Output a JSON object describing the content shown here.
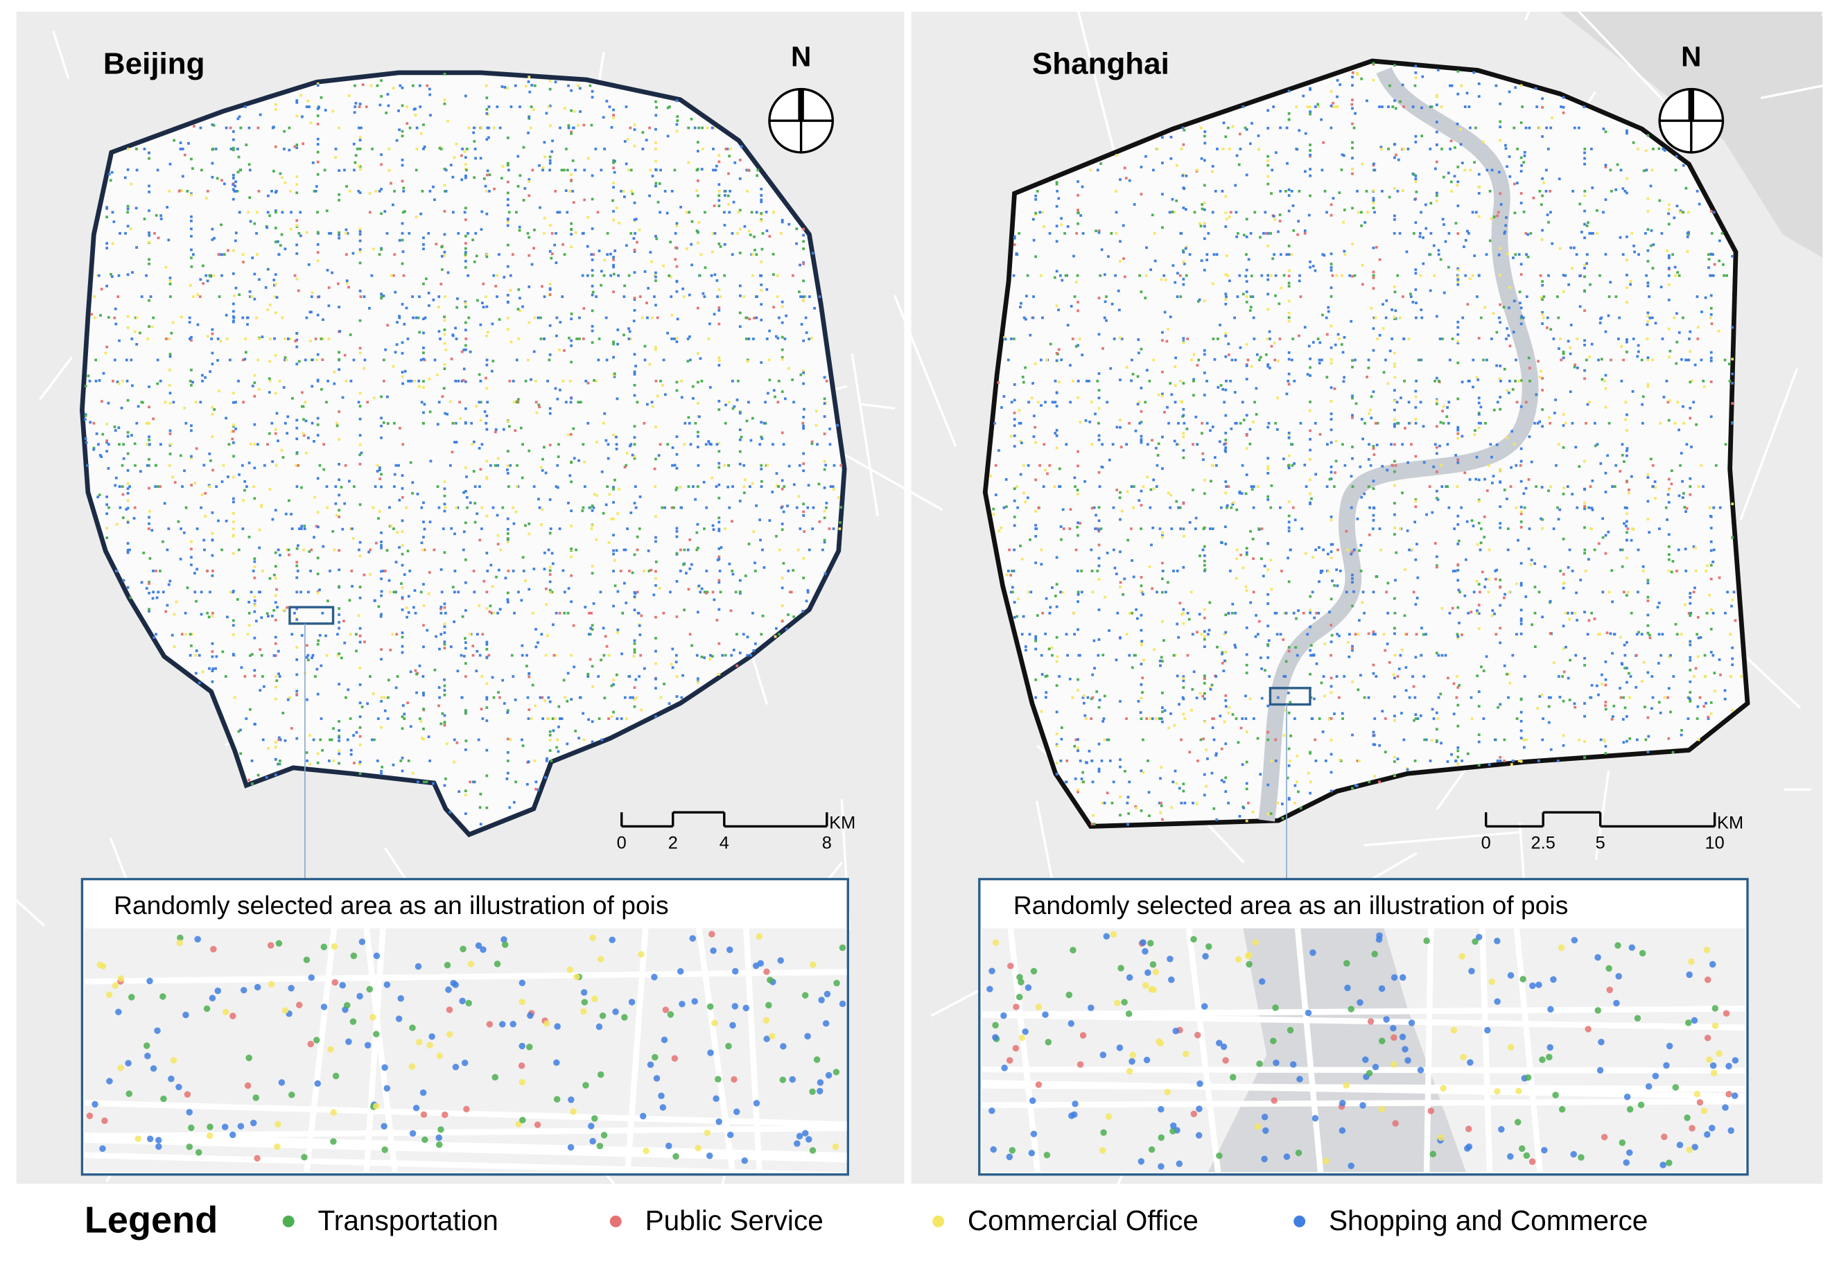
{
  "maps": [
    {
      "title": "Beijing",
      "compass": "N",
      "scale": {
        "ticks": [
          0,
          2,
          4,
          8
        ],
        "unit": "KM"
      },
      "inset_title": "Randomly selected area as an illustration of pois"
    },
    {
      "title": "Shanghai",
      "compass": "N",
      "scale": {
        "ticks": [
          0,
          2.5,
          5,
          10
        ],
        "unit": "KM"
      },
      "inset_title": "Randomly selected area as an illustration of pois"
    }
  ],
  "legend": {
    "title": "Legend",
    "items": [
      {
        "name": "Transportation",
        "color": "#4caf50"
      },
      {
        "name": "Public Service",
        "color": "#e57373"
      },
      {
        "name": "Commercial Office",
        "color": "#f5e663"
      },
      {
        "name": "Shopping and Commerce",
        "color": "#3f7fe0"
      }
    ]
  }
}
